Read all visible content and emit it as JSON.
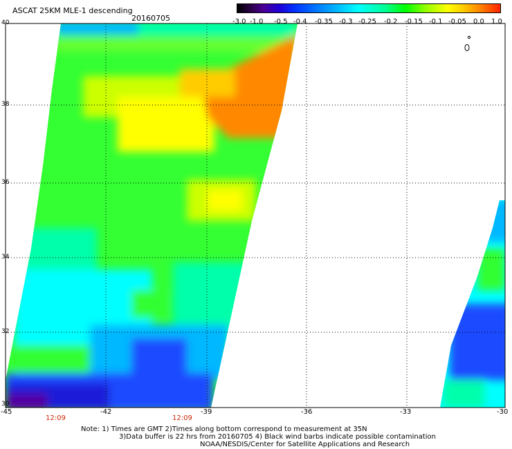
{
  "title": "ASCAT 25KM MLE-1 descending",
  "date": "20160705",
  "colorbar": {
    "tick_labels": [
      "-3.0",
      "-1.0",
      "-0.5",
      "-0.4",
      "-0.35",
      "-0.3",
      "-0.25",
      "-0.2",
      "-0.15",
      "-0.1",
      "-0.05",
      "0.0",
      "1.0"
    ],
    "colors": [
      "#000000",
      "#4b0096",
      "#0033ff",
      "#00b8ff",
      "#00ffff",
      "#00ff99",
      "#00ff00",
      "#99ff00",
      "#ffff00",
      "#ffcc00",
      "#ff8800",
      "#ff2200"
    ]
  },
  "axes": {
    "y_labels": [
      "40",
      "38",
      "36",
      "34",
      "32",
      "30"
    ],
    "x_labels": [
      "-45",
      "-42",
      "-39",
      "-36",
      "-33",
      "-30"
    ]
  },
  "times": [
    "12:09",
    "12:09"
  ],
  "notes": [
    "Note: 1) Times are GMT 2)Times along bottom correspond to measurement at 35N",
    "3)Data buffer is 22 hrs from 20160705 4) Black wind barbs indicate possible contamination",
    "NOAA/NESDIS/Center for Satellite Applications and Research"
  ],
  "swath_colors": {
    "blue": "#1e4cff",
    "light_blue": "#00b8ff",
    "cyan": "#00ffff",
    "aqua": "#00ffaa",
    "green": "#33ff33",
    "yellow_green": "#ccff00",
    "yellow": "#ffff00",
    "orange": "#ff8800",
    "dark_blue": "#1a1ad8",
    "purple": "#5500a0"
  }
}
